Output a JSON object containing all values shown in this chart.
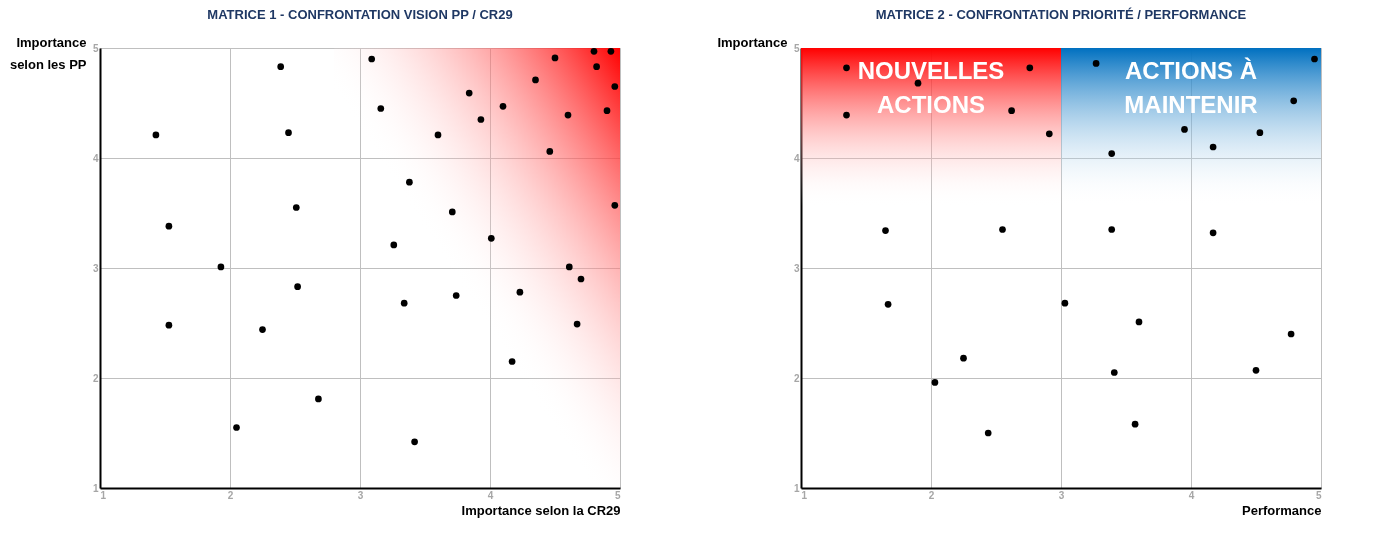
{
  "chart_data": [
    {
      "type": "scatter",
      "title": "MATRICE 1 - CONFRONTATION VISION PP / CR29",
      "xlabel": "Importance selon la CR29",
      "ylabel": "Importance selon les PP",
      "x": [
        1.43,
        2.39,
        2.45,
        2.51,
        1.53,
        1.93,
        2.52,
        1.53,
        2.25,
        2.68,
        2.05,
        3.09,
        3.16,
        3.38,
        3.26,
        3.34,
        3.42,
        3.6,
        3.71,
        3.74,
        3.84,
        3.93,
        4.01,
        4.1,
        4.23,
        4.17,
        4.35,
        4.46,
        4.5,
        4.6,
        4.61,
        4.7,
        4.67,
        4.8,
        4.82,
        4.93,
        4.9,
        4.96,
        4.96
      ],
      "series": [
        {
          "color": "#000000",
          "values": [
            4.21,
            4.83,
            4.23,
            3.55,
            3.38,
            3.01,
            2.83,
            2.48,
            2.44,
            1.81,
            1.55,
            4.9,
            4.45,
            3.78,
            3.21,
            2.68,
            1.42,
            4.21,
            3.51,
            2.75,
            4.59,
            4.35,
            3.27,
            4.47,
            2.78,
            2.15,
            4.71,
            4.06,
            4.91,
            4.39,
            3.01,
            2.9,
            2.49,
            4.97,
            4.83,
            4.97,
            4.43,
            4.65,
            3.57
          ]
        }
      ],
      "xlim": [
        1,
        5
      ],
      "ylim": [
        1,
        5
      ],
      "xticks": [
        1,
        2,
        3,
        4,
        5
      ],
      "yticks": [
        1,
        2,
        3,
        4,
        5
      ],
      "grid": true,
      "marker": "circle",
      "bands": [
        {
          "axis": "x",
          "from": 2.8,
          "to": 5,
          "color": "#ff0000"
        }
      ]
    },
    {
      "type": "scatter",
      "title": "MATRICE 2 - CONFRONTATION PRIORITÉ / PERFORMANCE",
      "xlabel": "Performance",
      "ylabel": "Importance",
      "x": [
        1.35,
        1.35,
        1.9,
        2.76,
        2.62,
        2.91,
        3.27,
        3.39,
        3.95,
        4.17,
        4.53,
        4.79,
        4.95,
        1.65,
        2.55,
        3.39,
        4.17,
        1.67,
        3.03,
        3.6,
        2.25,
        2.03,
        2.44,
        3.41,
        3.57,
        4.5,
        4.77
      ],
      "series": [
        {
          "color": "#000000",
          "values": [
            4.82,
            4.39,
            4.68,
            4.82,
            4.43,
            4.22,
            4.86,
            4.04,
            4.26,
            4.1,
            4.23,
            4.52,
            4.9,
            3.34,
            3.35,
            3.35,
            3.32,
            2.67,
            2.68,
            2.51,
            2.18,
            1.96,
            1.5,
            2.05,
            1.58,
            2.07,
            2.4
          ]
        }
      ],
      "xlim": [
        1,
        5
      ],
      "ylim": [
        1,
        5
      ],
      "xticks": [
        1,
        2,
        3,
        4,
        5
      ],
      "yticks": [
        1,
        2,
        3,
        4,
        5
      ],
      "grid": true,
      "marker": "circle",
      "bands": [
        {
          "axis": "x",
          "from": 1,
          "to": 3,
          "label": "NOUVELLES ACTIONS",
          "color": "#ff0000"
        },
        {
          "axis": "x",
          "from": 3,
          "to": 5,
          "label": "ACTIONS À MAINTENIR",
          "color": "#0070c0"
        }
      ]
    }
  ]
}
